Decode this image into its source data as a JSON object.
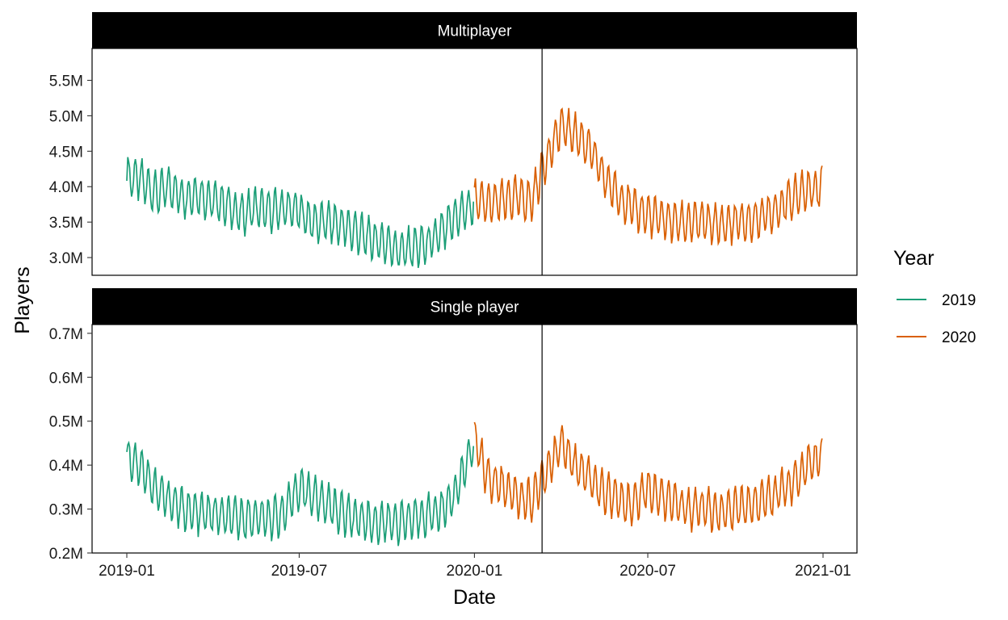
{
  "chart_data": {
    "type": "line",
    "xlabel": "Date",
    "ylabel": "Players",
    "x_ticks": [
      "2019-01",
      "2019-07",
      "2020-01",
      "2020-07",
      "2021-01"
    ],
    "x_range": [
      "2019-01-01",
      "2021-01-01"
    ],
    "vline": "2020-03-12",
    "legend": {
      "title": "Year",
      "placement": "right",
      "entries": [
        {
          "label": "2019",
          "color": "#1b9e77"
        },
        {
          "label": "2020",
          "color": "#d95f02"
        }
      ]
    },
    "panels": [
      {
        "title": "Multiplayer",
        "y_ticks": [
          3.0,
          3.5,
          4.0,
          4.5,
          5.0,
          5.5
        ],
        "y_tick_labels": [
          "3.0M",
          "3.5M",
          "4.0M",
          "4.5M",
          "5.0M",
          "5.5M"
        ],
        "ylim": [
          2.75,
          5.95
        ],
        "series": [
          {
            "name": "2019",
            "color": "#1b9e77",
            "points": [
              [
                "2019-01-01",
                4.15
              ],
              [
                "2019-01-15",
                4.1
              ],
              [
                "2019-02-01",
                3.9
              ],
              [
                "2019-02-15",
                4.0
              ],
              [
                "2019-03-01",
                3.85
              ],
              [
                "2019-03-15",
                3.9
              ],
              [
                "2019-04-01",
                3.8
              ],
              [
                "2019-04-15",
                3.75
              ],
              [
                "2019-05-01",
                3.6
              ],
              [
                "2019-05-15",
                3.7
              ],
              [
                "2019-06-01",
                3.65
              ],
              [
                "2019-06-15",
                3.7
              ],
              [
                "2019-07-01",
                3.65
              ],
              [
                "2019-07-15",
                3.5
              ],
              [
                "2019-08-01",
                3.5
              ],
              [
                "2019-08-15",
                3.45
              ],
              [
                "2019-09-01",
                3.35
              ],
              [
                "2019-09-15",
                3.25
              ],
              [
                "2019-10-01",
                3.2
              ],
              [
                "2019-10-15",
                3.1
              ],
              [
                "2019-11-01",
                3.15
              ],
              [
                "2019-11-15",
                3.2
              ],
              [
                "2019-12-01",
                3.4
              ],
              [
                "2019-12-15",
                3.6
              ],
              [
                "2019-12-31",
                3.75
              ]
            ]
          },
          {
            "name": "2020",
            "color": "#d95f02",
            "points": [
              [
                "2020-01-01",
                3.8
              ],
              [
                "2020-01-15",
                3.75
              ],
              [
                "2020-02-01",
                3.8
              ],
              [
                "2020-02-15",
                3.85
              ],
              [
                "2020-03-01",
                3.8
              ],
              [
                "2020-03-15",
                4.35
              ],
              [
                "2020-04-01",
                4.85
              ],
              [
                "2020-04-15",
                4.75
              ],
              [
                "2020-05-01",
                4.55
              ],
              [
                "2020-05-15",
                4.15
              ],
              [
                "2020-06-01",
                3.85
              ],
              [
                "2020-06-15",
                3.7
              ],
              [
                "2020-07-01",
                3.6
              ],
              [
                "2020-07-15",
                3.55
              ],
              [
                "2020-08-01",
                3.5
              ],
              [
                "2020-08-15",
                3.5
              ],
              [
                "2020-09-01",
                3.5
              ],
              [
                "2020-09-15",
                3.45
              ],
              [
                "2020-10-01",
                3.5
              ],
              [
                "2020-10-15",
                3.5
              ],
              [
                "2020-11-01",
                3.6
              ],
              [
                "2020-11-15",
                3.7
              ],
              [
                "2020-12-01",
                3.85
              ],
              [
                "2020-12-15",
                3.95
              ],
              [
                "2020-12-31",
                4.0
              ]
            ]
          }
        ]
      },
      {
        "title": "Single player",
        "y_ticks": [
          0.2,
          0.3,
          0.4,
          0.5,
          0.6,
          0.7
        ],
        "y_tick_labels": [
          "0.2M",
          "0.3M",
          "0.4M",
          "0.5M",
          "0.6M",
          "0.7M"
        ],
        "ylim": [
          0.2,
          0.72
        ],
        "series": [
          {
            "name": "2019",
            "color": "#1b9e77",
            "points": [
              [
                "2019-01-01",
                0.42
              ],
              [
                "2019-01-15",
                0.4
              ],
              [
                "2019-02-01",
                0.34
              ],
              [
                "2019-02-15",
                0.32
              ],
              [
                "2019-03-01",
                0.3
              ],
              [
                "2019-03-15",
                0.29
              ],
              [
                "2019-04-01",
                0.29
              ],
              [
                "2019-04-15",
                0.28
              ],
              [
                "2019-05-01",
                0.28
              ],
              [
                "2019-05-15",
                0.28
              ],
              [
                "2019-06-01",
                0.28
              ],
              [
                "2019-06-15",
                0.29
              ],
              [
                "2019-07-01",
                0.35
              ],
              [
                "2019-07-15",
                0.33
              ],
              [
                "2019-08-01",
                0.31
              ],
              [
                "2019-08-15",
                0.29
              ],
              [
                "2019-09-01",
                0.28
              ],
              [
                "2019-09-15",
                0.27
              ],
              [
                "2019-10-01",
                0.27
              ],
              [
                "2019-10-15",
                0.27
              ],
              [
                "2019-11-01",
                0.28
              ],
              [
                "2019-11-15",
                0.29
              ],
              [
                "2019-12-01",
                0.3
              ],
              [
                "2019-12-15",
                0.35
              ],
              [
                "2019-12-31",
                0.45
              ]
            ]
          },
          {
            "name": "2020",
            "color": "#d95f02",
            "points": [
              [
                "2020-01-01",
                0.46
              ],
              [
                "2020-01-15",
                0.37
              ],
              [
                "2020-02-01",
                0.35
              ],
              [
                "2020-02-15",
                0.33
              ],
              [
                "2020-03-01",
                0.32
              ],
              [
                "2020-03-15",
                0.38
              ],
              [
                "2020-04-01",
                0.45
              ],
              [
                "2020-04-15",
                0.4
              ],
              [
                "2020-05-01",
                0.37
              ],
              [
                "2020-05-15",
                0.34
              ],
              [
                "2020-06-01",
                0.32
              ],
              [
                "2020-06-15",
                0.31
              ],
              [
                "2020-07-01",
                0.35
              ],
              [
                "2020-07-15",
                0.33
              ],
              [
                "2020-08-01",
                0.31
              ],
              [
                "2020-08-15",
                0.3
              ],
              [
                "2020-09-01",
                0.3
              ],
              [
                "2020-09-15",
                0.29
              ],
              [
                "2020-10-01",
                0.3
              ],
              [
                "2020-10-15",
                0.31
              ],
              [
                "2020-11-01",
                0.32
              ],
              [
                "2020-11-15",
                0.34
              ],
              [
                "2020-12-01",
                0.36
              ],
              [
                "2020-12-15",
                0.4
              ],
              [
                "2020-12-31",
                0.42
              ]
            ]
          }
        ]
      }
    ]
  }
}
